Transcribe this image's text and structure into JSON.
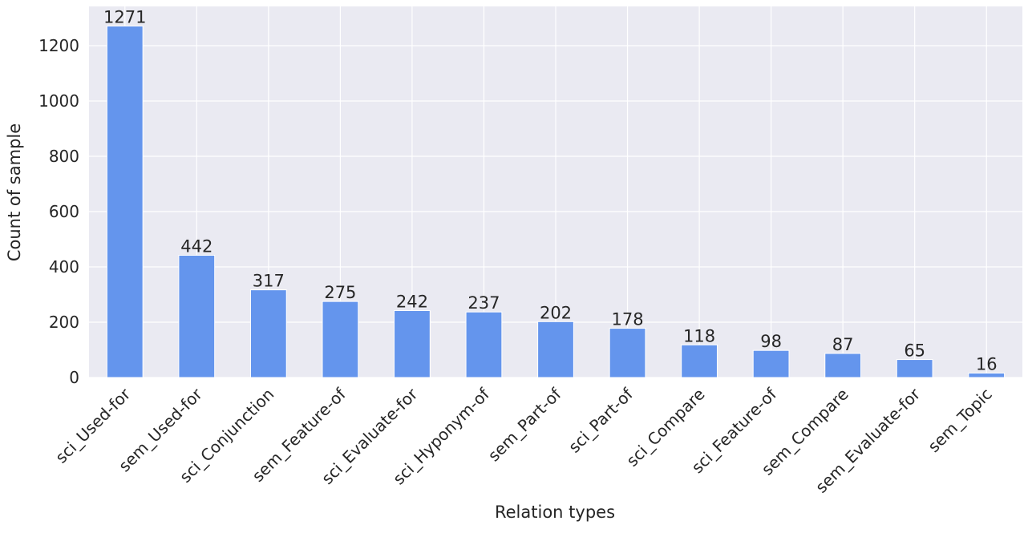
{
  "chart_data": {
    "type": "bar",
    "x_label": "Relation types",
    "y_label": "Count of sample",
    "categories": [
      "sci_Used-for",
      "sem_Used-for",
      "sci_Conjunction",
      "sem_Feature-of",
      "sci_Evaluate-for",
      "sci_Hyponym-of",
      "sem_Part-of",
      "sci_Part-of",
      "sci_Compare",
      "sci_Feature-of",
      "sem_Compare",
      "sem_Evaluate-for",
      "sem_Topic"
    ],
    "values": [
      1271,
      442,
      317,
      275,
      242,
      237,
      202,
      178,
      118,
      98,
      87,
      65,
      16
    ],
    "color": "#6495ed",
    "ylim": [
      0,
      1342
    ],
    "yticks": [
      0,
      200,
      400,
      600,
      800,
      1000,
      1200
    ],
    "grid": true
  }
}
